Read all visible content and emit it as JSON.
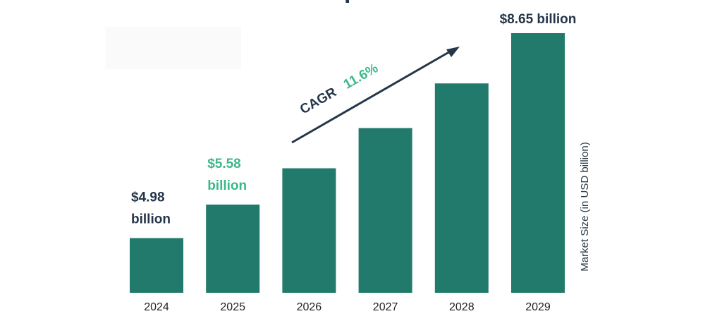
{
  "chart_data": {
    "type": "bar",
    "title": "p",
    "categories": [
      "2024",
      "2025",
      "2026",
      "2027",
      "2028",
      "2029"
    ],
    "values": [
      4.98,
      5.58,
      6.23,
      6.95,
      7.75,
      8.65
    ],
    "ylabel": "Market Size (in USD billion)",
    "ylim": [
      4.0,
      8.65
    ],
    "grid": false,
    "legend": "none",
    "data_labels": [
      {
        "category": "2024",
        "line1": "$4.98",
        "line2": "billion",
        "color": "#25364a"
      },
      {
        "category": "2025",
        "line1": "$5.58",
        "line2": "billion",
        "color": "#3cb88a"
      },
      {
        "category": "2029",
        "line1": "$8.65 billion",
        "color": "#25364a"
      }
    ],
    "annotation": {
      "prefix": "CAGR",
      "value": "11.6%",
      "prefix_color": "#25364a",
      "value_color": "#3cb88a"
    },
    "bar_color": "#217a6b"
  }
}
